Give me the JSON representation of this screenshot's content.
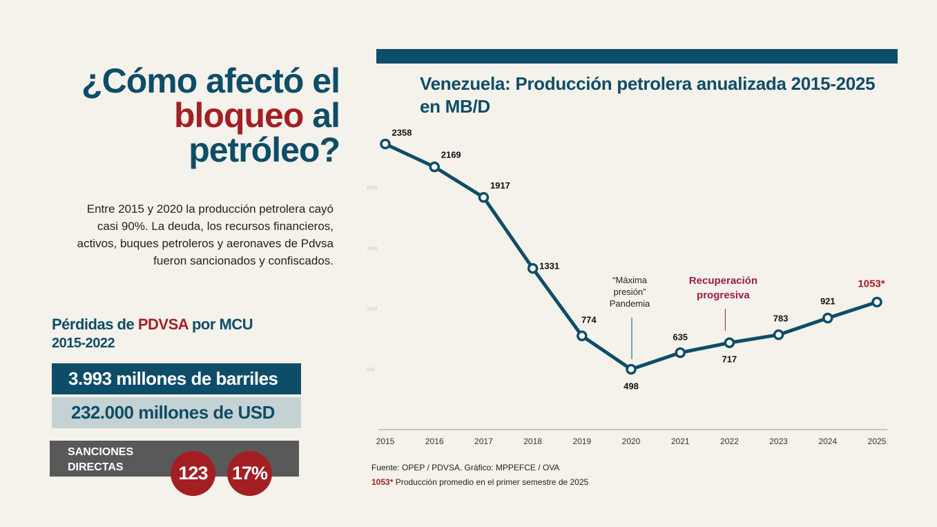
{
  "headline": {
    "line1": "¿Cómo afectó el",
    "word_red": "bloqueo",
    "word_after": " al",
    "line3": "petróleo?"
  },
  "intro": "Entre 2015 y 2020 la producción petrolera cayó casi 90%. La deuda, los recursos financieros, activos, buques petroleros y aeronaves de Pdvsa fueron sancionados y confiscados.",
  "losses": {
    "title_prefix": "Pérdidas de ",
    "title_red": "PDVSA",
    "title_suffix": " por MCU",
    "years": "2015-2022",
    "barrels": "3.993 millones de barriles",
    "usd": "232.000 millones de USD"
  },
  "sanctions": {
    "label": "SANCIONES DIRECTAS",
    "count": "123",
    "percent": "17%"
  },
  "colors": {
    "navy": "#0e4d68",
    "red": "#a31f24",
    "magenta": "#9b1b4d",
    "gray_box": "#595959",
    "light_bar": "#c5d2d4",
    "background": "#f4f2ea"
  },
  "chart_data": {
    "type": "line",
    "title": "Venezuela: Producción petrolera anualizada 2015-2025 en MB/D",
    "x": [
      "2015",
      "2016",
      "2017",
      "2018",
      "2019",
      "2020",
      "2021",
      "2022",
      "2023",
      "2024",
      "2025"
    ],
    "values": [
      2358,
      2169,
      1917,
      1331,
      774,
      498,
      635,
      717,
      783,
      921,
      1053
    ],
    "value_labels": [
      "2358",
      "2169",
      "1917",
      "1331",
      "774",
      "498",
      "635",
      "717",
      "783",
      "921",
      "1053*"
    ],
    "ylim": [
      0,
      2400
    ],
    "y_ticks": [
      "2000",
      "1500",
      "1000",
      "500"
    ],
    "annotations": [
      {
        "text": "“Máxima presión” Pandemia",
        "x": "2020"
      },
      {
        "text": "Recuperación progresiva",
        "x": "2022"
      }
    ],
    "source": "Fuente: OPEP / PDVSA. Gráfico: MPPEFCE / OVA",
    "footnote_mark": "1053*",
    "footnote_text": " Producción promedio en el primer semestre de 2025"
  }
}
